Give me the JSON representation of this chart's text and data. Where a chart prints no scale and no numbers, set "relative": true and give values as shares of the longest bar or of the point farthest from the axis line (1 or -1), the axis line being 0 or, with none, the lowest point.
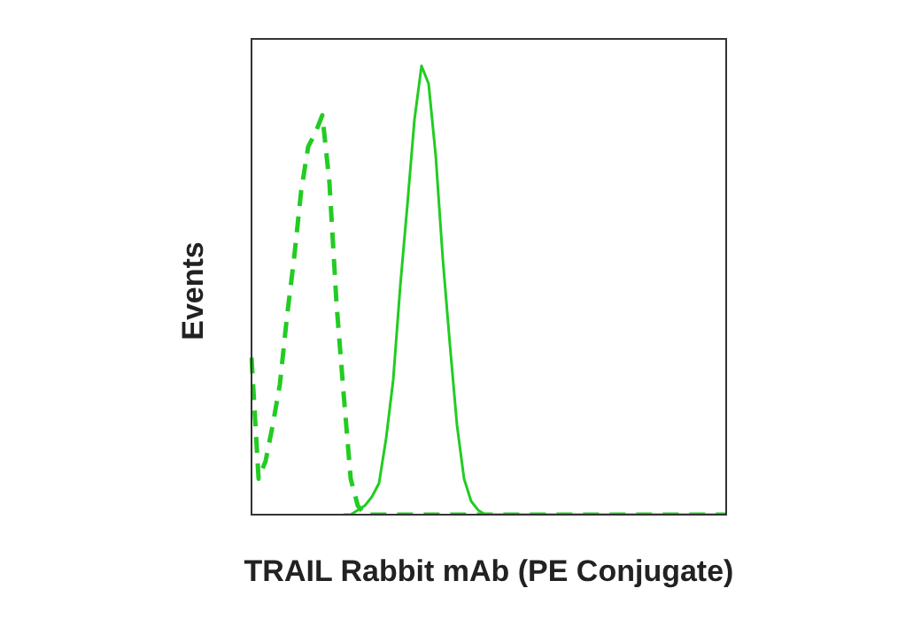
{
  "chart_data": {
    "type": "line",
    "relative": true,
    "xlabel": "TRAIL Rabbit mAb (PE Conjugate)",
    "ylabel": "Events",
    "categories": [
      null,
      null,
      null,
      null,
      null,
      null,
      null,
      null,
      null,
      null,
      null,
      null,
      null,
      null,
      null,
      null,
      null,
      null,
      null,
      null,
      null,
      null,
      null,
      null,
      null,
      null,
      null,
      null,
      null,
      null,
      null,
      null,
      null,
      null,
      null,
      null,
      null,
      null,
      null,
      null,
      null,
      null,
      null,
      null,
      null,
      null,
      null,
      null,
      null,
      null,
      null,
      null,
      null,
      null,
      null,
      null,
      null,
      null,
      null,
      null,
      null,
      null,
      null,
      null,
      null,
      null,
      null,
      null
    ],
    "series": [
      {
        "color": "#22cc22",
        "line_style": "dashed",
        "values": [
          0.35,
          0.08,
          0.12,
          0.2,
          0.29,
          0.44,
          0.57,
          0.72,
          0.82,
          0.85,
          0.89,
          0.74,
          0.47,
          0.27,
          0.08,
          0.02,
          0,
          0,
          0,
          0,
          0,
          0,
          0,
          0,
          0,
          0,
          0,
          0,
          0,
          0,
          0,
          0,
          0,
          0,
          0,
          0,
          0,
          0,
          0,
          0,
          0,
          0,
          0,
          0,
          0,
          0,
          0,
          0,
          0,
          0,
          0,
          0,
          0,
          0,
          0,
          0,
          0,
          0,
          0,
          0,
          0,
          0,
          0,
          0,
          0,
          0,
          0,
          0
        ]
      },
      {
        "color": "#22cc22",
        "line_style": "solid",
        "values": [
          null,
          null,
          null,
          null,
          null,
          null,
          null,
          null,
          null,
          null,
          null,
          null,
          null,
          0,
          0,
          0.01,
          0.02,
          0.04,
          0.07,
          0.17,
          0.3,
          0.51,
          0.69,
          0.88,
          1,
          0.96,
          0.8,
          0.57,
          0.38,
          0.2,
          0.08,
          0.03,
          0.01,
          0,
          0,
          0,
          0,
          0,
          0,
          0,
          0,
          0,
          0,
          0,
          0,
          0,
          0,
          0,
          0,
          0,
          0,
          0,
          0,
          0,
          0,
          0,
          0,
          0,
          0,
          0,
          0,
          0,
          0,
          0,
          0,
          0,
          0,
          0
        ]
      }
    ]
  }
}
